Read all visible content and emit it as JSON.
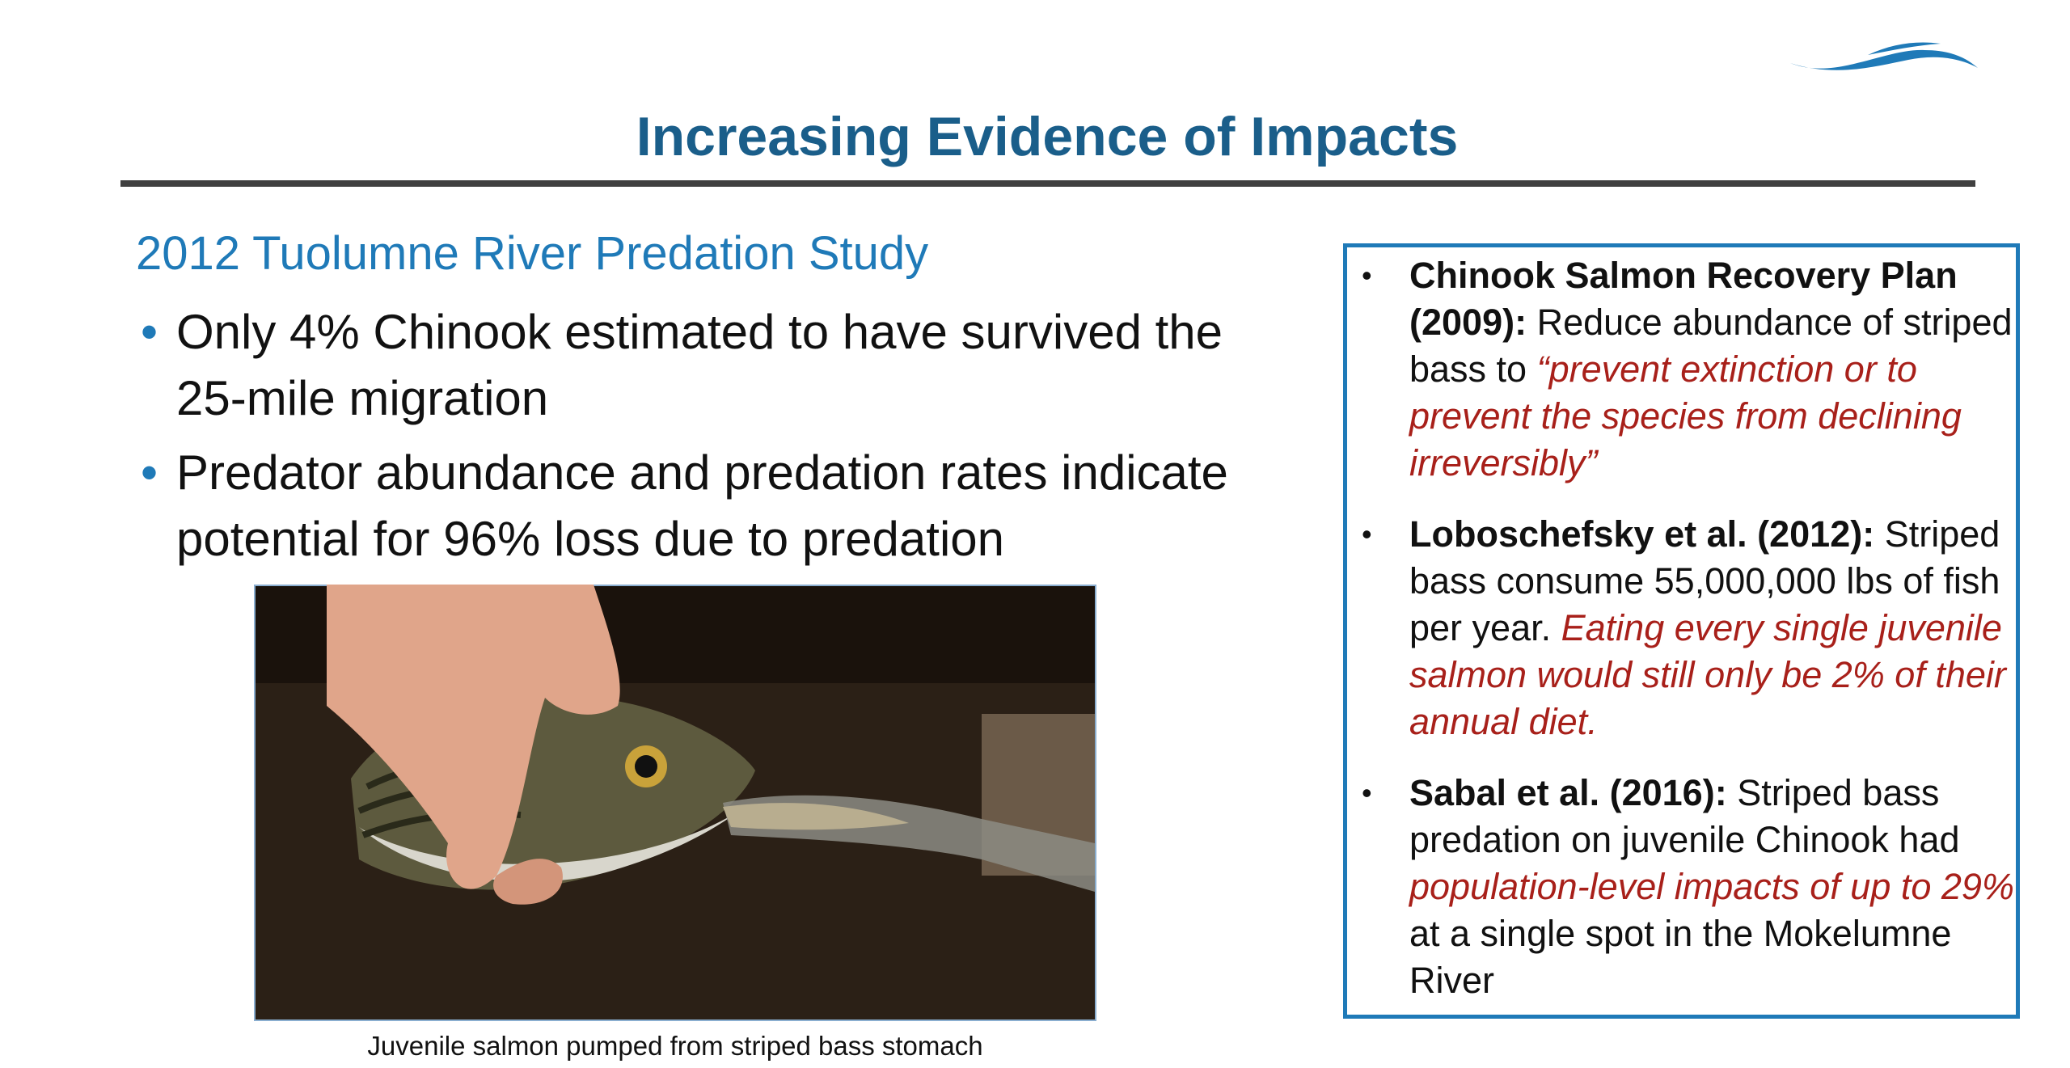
{
  "header": {
    "title": "Increasing Evidence of Impacts"
  },
  "main": {
    "subtitle": "2012 Tuolumne River Predation Study",
    "bullets": [
      "Only 4% Chinook estimated to have survived the 25-mile migration",
      "Predator abundance and predation rates indicate potential for 96% loss due to predation"
    ]
  },
  "photo": {
    "caption": "Juvenile salmon pumped from striped bass stomach"
  },
  "sidebar": {
    "items": [
      {
        "lead": "Chinook Salmon Recovery Plan (2009):",
        "parts": [
          {
            "text": "Reduce abundance of striped bass to",
            "emphasis": false
          },
          {
            "text": "“prevent extinction or to prevent the species from declining irreversibly”",
            "emphasis": true
          }
        ]
      },
      {
        "lead": "Loboschefsky et al. (2012):",
        "parts": [
          {
            "text": "Striped bass consume 55,000,000 lbs of fish per year.",
            "emphasis": false
          },
          {
            "text": "Eating every single juvenile salmon would still only be 2% of their annual diet.",
            "emphasis": true
          }
        ]
      },
      {
        "lead": "Sabal et al. (2016):",
        "parts": [
          {
            "text": "Striped bass predation on juvenile Chinook had",
            "emphasis": false
          },
          {
            "text": "population-level impacts of up to 29%",
            "emphasis": true
          },
          {
            "text": "at a single spot in the Mokelumne River",
            "emphasis": false
          }
        ]
      }
    ]
  }
}
